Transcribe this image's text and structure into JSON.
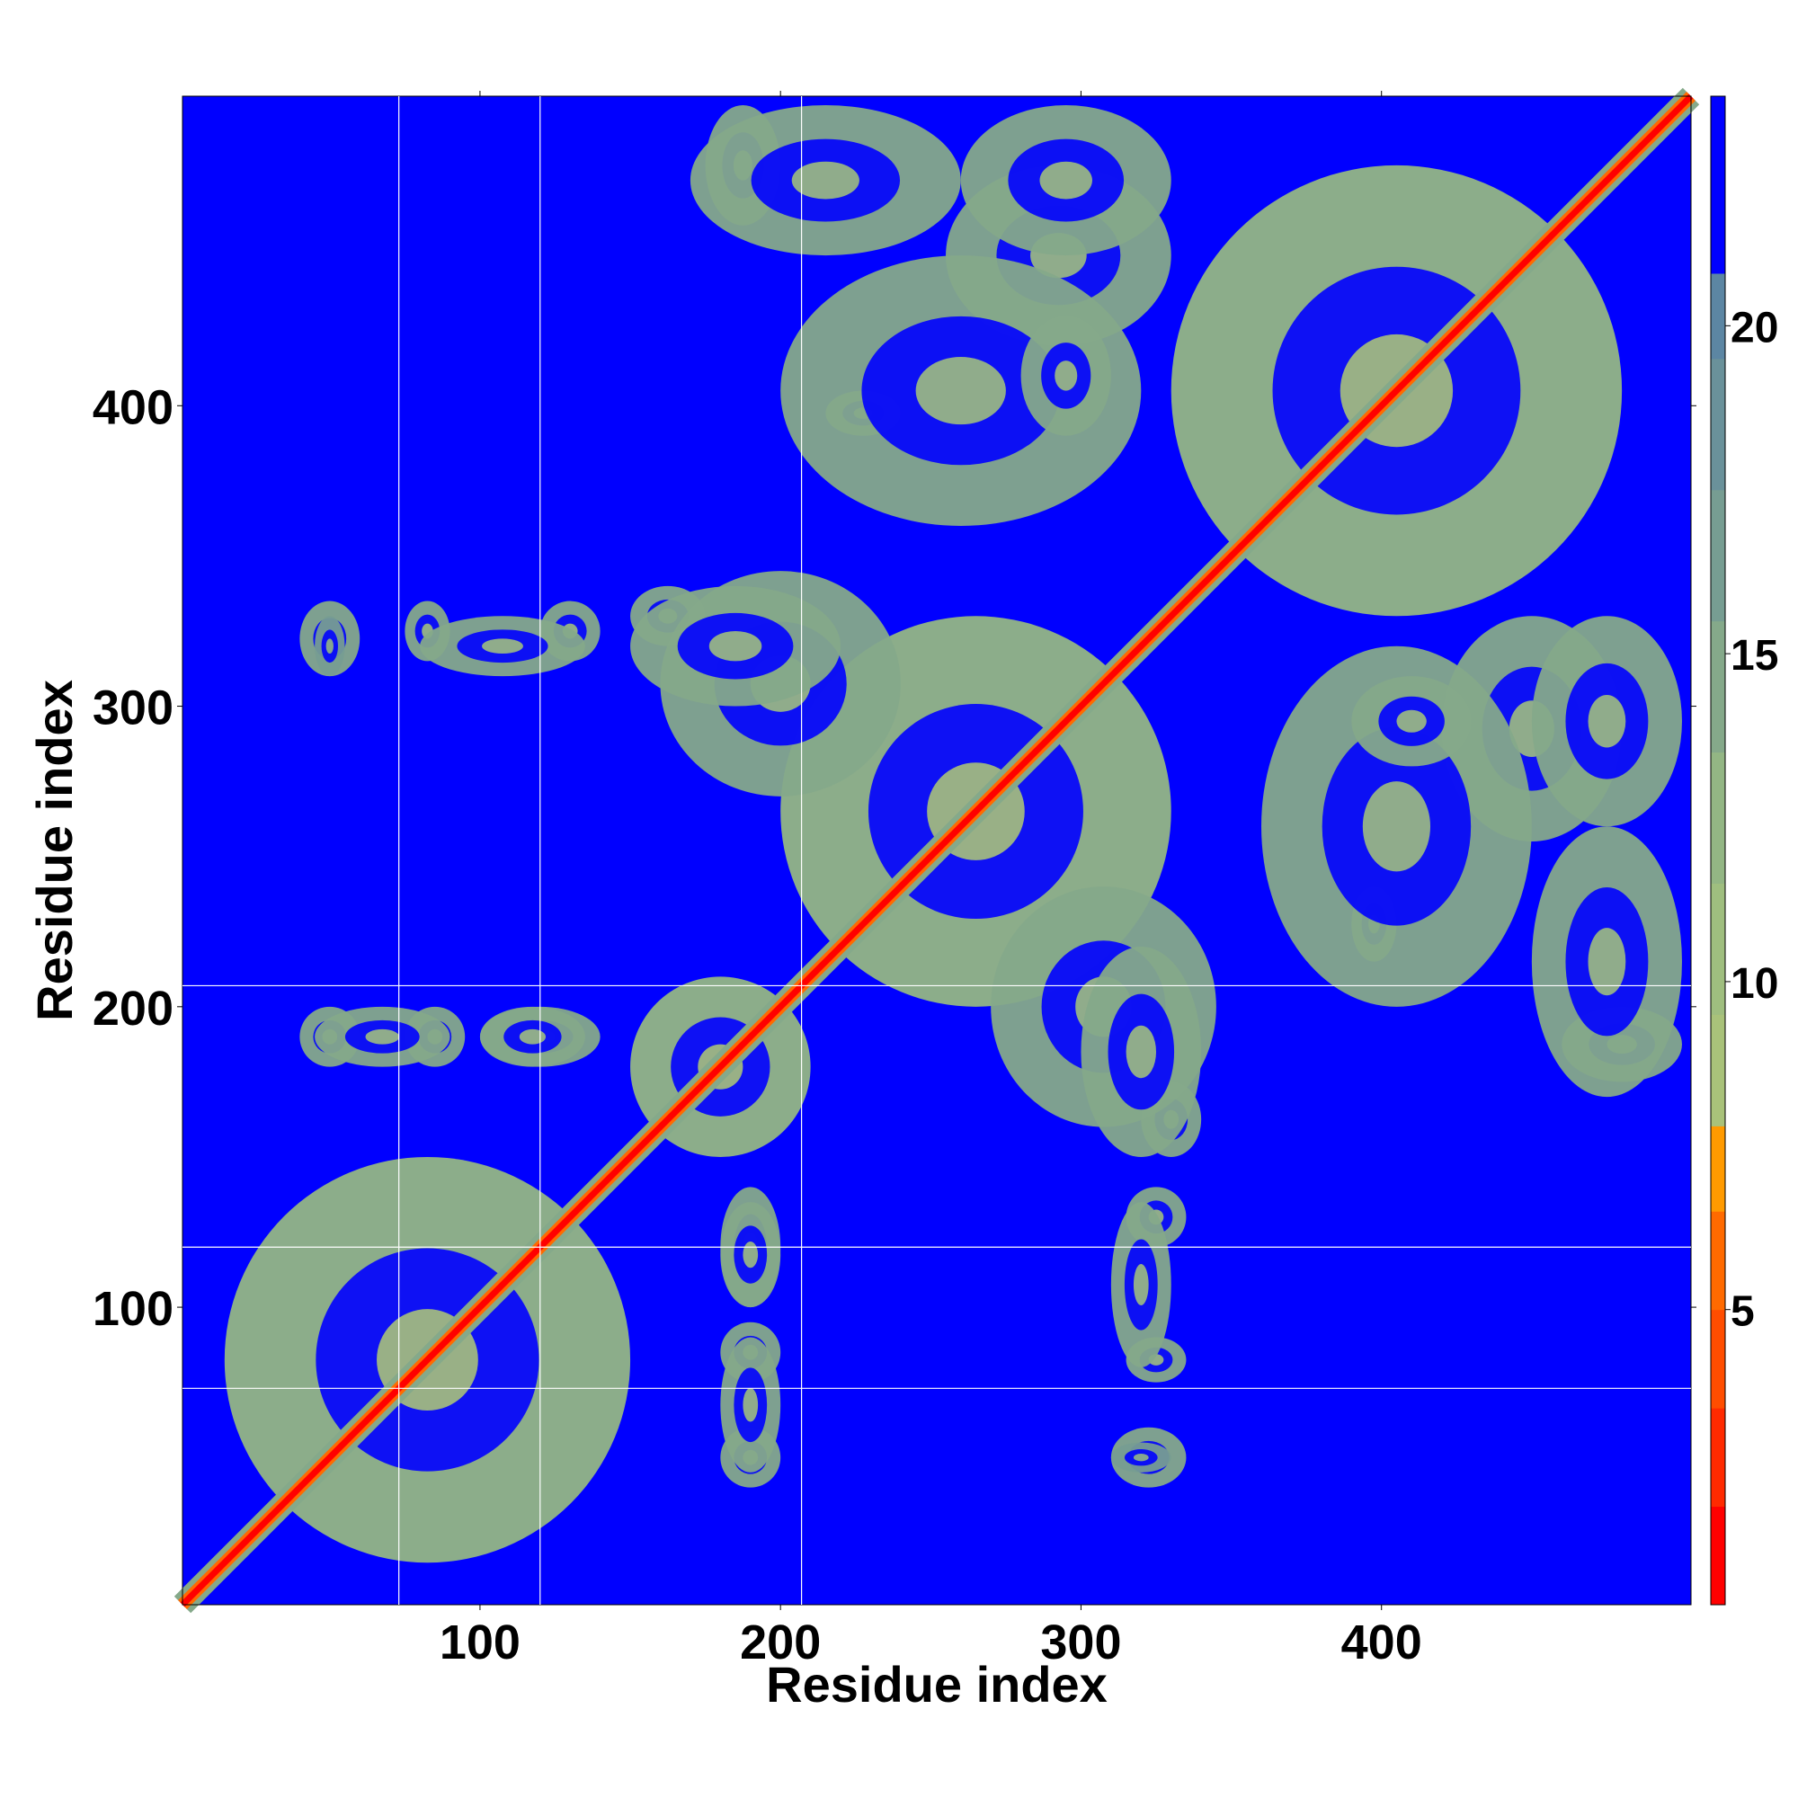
{
  "chart_data": {
    "type": "heatmap",
    "title": "",
    "xlabel": "Residue index",
    "ylabel": "Residue index",
    "xlim": [
      1,
      503
    ],
    "ylim": [
      1,
      503
    ],
    "x_ticks": [
      100,
      200,
      300,
      400
    ],
    "y_ticks": [
      100,
      200,
      300,
      400
    ],
    "colorbar": {
      "ticks": [
        5,
        10,
        15,
        20
      ],
      "range": [
        0.5,
        23.5
      ],
      "levels": [
        {
          "from": 0.5,
          "to": 2.0,
          "color": "#ff0000"
        },
        {
          "from": 2.0,
          "to": 3.5,
          "color": "#ff2a00"
        },
        {
          "from": 3.5,
          "to": 5.0,
          "color": "#ff4d00"
        },
        {
          "from": 5.0,
          "to": 6.5,
          "color": "#ff6a00"
        },
        {
          "from": 6.5,
          "to": 7.8,
          "color": "#ff9a00"
        },
        {
          "from": 7.8,
          "to": 9.5,
          "color": "#a9c27a"
        },
        {
          "from": 9.5,
          "to": 11.5,
          "color": "#9fbe7f"
        },
        {
          "from": 11.5,
          "to": 13.5,
          "color": "#93b684"
        },
        {
          "from": 13.5,
          "to": 15.5,
          "color": "#85a98a"
        },
        {
          "from": 15.5,
          "to": 17.5,
          "color": "#779d92"
        },
        {
          "from": 17.5,
          "to": 19.5,
          "color": "#6a919a"
        },
        {
          "from": 19.5,
          "to": 20.8,
          "color": "#5c86a3"
        },
        {
          "from": 20.8,
          "to": 23.5,
          "color": "#0000ff"
        }
      ]
    },
    "background_color": "#0000ff",
    "diagonal_value": 0.8,
    "domain_lines": [
      73,
      120,
      207
    ],
    "contact_regions": [
      {
        "x": [
          15,
          150
        ],
        "y": [
          15,
          150
        ],
        "value": 13
      },
      {
        "x": [
          150,
          210
        ],
        "y": [
          150,
          210
        ],
        "value": 12
      },
      {
        "x": [
          200,
          330
        ],
        "y": [
          200,
          330
        ],
        "value": 13
      },
      {
        "x": [
          330,
          480
        ],
        "y": [
          330,
          480
        ],
        "value": 13
      },
      {
        "x": [
          175,
          200
        ],
        "y": [
          460,
          500
        ],
        "value": 14
      },
      {
        "x": [
          255,
          330
        ],
        "y": [
          420,
          480
        ],
        "value": 14
      },
      {
        "x": [
          215,
          240
        ],
        "y": [
          390,
          405
        ],
        "value": 15
      },
      {
        "x": [
          40,
          60
        ],
        "y": [
          310,
          335
        ],
        "value": 15
      },
      {
        "x": [
          75,
          90
        ],
        "y": [
          315,
          335
        ],
        "value": 15
      },
      {
        "x": [
          120,
          140
        ],
        "y": [
          315,
          335
        ],
        "value": 15
      },
      {
        "x": [
          150,
          175
        ],
        "y": [
          320,
          340
        ],
        "value": 15
      },
      {
        "x": [
          160,
          240
        ],
        "y": [
          270,
          345
        ],
        "value": 14
      },
      {
        "x": [
          300,
          340
        ],
        "y": [
          150,
          220
        ],
        "value": 14
      },
      {
        "x": [
          360,
          450
        ],
        "y": [
          200,
          320
        ],
        "value": 14
      },
      {
        "x": [
          390,
          430
        ],
        "y": [
          280,
          310
        ],
        "value": 15
      },
      {
        "x": [
          450,
          500
        ],
        "y": [
          170,
          260
        ],
        "value": 14
      },
      {
        "x": [
          450,
          500
        ],
        "y": [
          260,
          330
        ],
        "value": 14
      },
      {
        "x": [
          40,
          60
        ],
        "y": [
          180,
          200
        ],
        "value": 15
      },
      {
        "x": [
          75,
          95
        ],
        "y": [
          180,
          200
        ],
        "value": 15
      },
      {
        "x": [
          100,
          140
        ],
        "y": [
          180,
          200
        ],
        "value": 15
      },
      {
        "x": [
          180,
          200
        ],
        "y": [
          100,
          135
        ],
        "value": 15
      },
      {
        "x": [
          180,
          200
        ],
        "y": [
          45,
          90
        ],
        "value": 15
      },
      {
        "x": [
          310,
          330
        ],
        "y": [
          80,
          135
        ],
        "value": 15
      },
      {
        "x": [
          310,
          330
        ],
        "y": [
          45,
          55
        ],
        "value": 16
      }
    ]
  }
}
